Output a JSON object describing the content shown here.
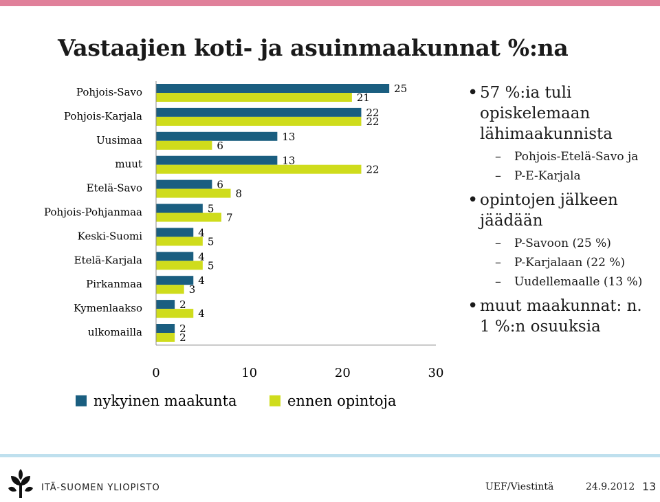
{
  "slide": {
    "title": "Vastaajien koti- ja asuinmaakunnat %:na",
    "accent_top": "#e0809a",
    "accent_bottom": "#bfe0ee"
  },
  "chart_data": {
    "type": "bar",
    "orientation": "horizontal",
    "categories": [
      "Pohjois-Savo",
      "Pohjois-Karjala",
      "Uusimaa",
      "muut",
      "Etelä-Savo",
      "Pohjois-Pohjanmaa",
      "Keski-Suomi",
      "Etelä-Karjala",
      "Pirkanmaa",
      "Kymenlaakso",
      "ulkomailla"
    ],
    "series": [
      {
        "name": "nykyinen maakunta",
        "color": "#1a5e80",
        "values": [
          25,
          22,
          13,
          13,
          6,
          5,
          4,
          4,
          4,
          2,
          2
        ]
      },
      {
        "name": "ennen opintoja",
        "color": "#cfdc1c",
        "values": [
          21,
          22,
          6,
          22,
          8,
          7,
          5,
          5,
          3,
          4,
          2
        ]
      }
    ],
    "xlim": [
      0,
      30
    ],
    "xticks": [
      "0",
      "10",
      "20",
      "30"
    ],
    "grid": false,
    "legend": "bottom",
    "data_labels": true
  },
  "bullets": [
    {
      "text": "57 %:ia tuli opiskelemaan lähimaakunnista",
      "subs": [
        "Pohjois-Etelä-Savo ja",
        "P-E-Karjala"
      ]
    },
    {
      "text": "opintojen jälkeen jäädään",
      "subs": [
        "P-Savoon (25 %)",
        "P-Karjalaan (22 %)",
        "Uudellemaalle (13 %)"
      ]
    },
    {
      "text": "muut maakunnat: n. 1 %:n osuuksia",
      "subs": []
    }
  ],
  "footer": {
    "university": "ITÄ-SUOMEN YLIOPISTO",
    "source": "UEF/Viestintä",
    "date": "24.9.2012",
    "page": "13"
  }
}
